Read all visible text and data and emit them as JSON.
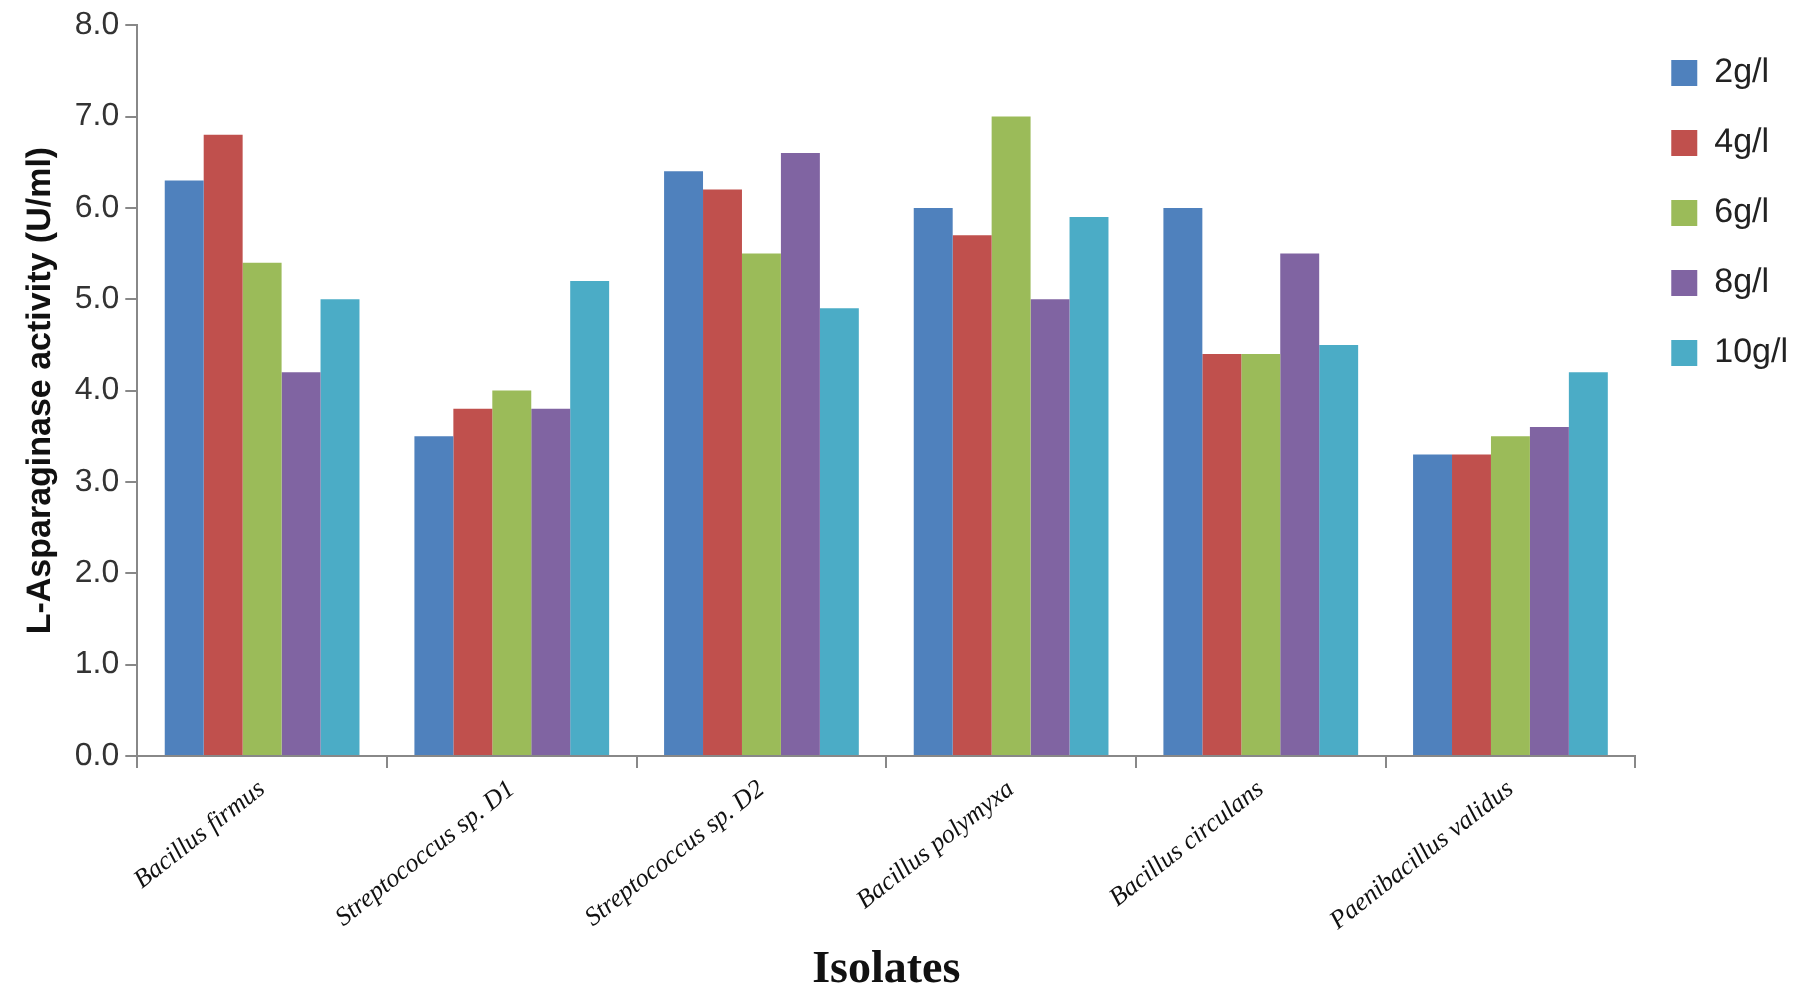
{
  "chart_data": {
    "type": "bar",
    "xlabel": "Isolates",
    "ylabel": "L-Asparaginase activity (U/ml)",
    "categories": [
      "Bacillus firmus",
      "Streptococcus sp. D1",
      "Streptococcus sp. D2",
      "Bacillus polymyxa",
      "Bacillus circulans",
      "Paenibacillus validus"
    ],
    "series": [
      {
        "name": "2g/l",
        "color": "#4f81bd",
        "values": [
          6.3,
          3.5,
          6.4,
          6.0,
          6.0,
          3.3
        ]
      },
      {
        "name": "4g/l",
        "color": "#c0504d",
        "values": [
          6.8,
          3.8,
          6.2,
          5.7,
          4.4,
          3.3
        ]
      },
      {
        "name": "6g/l",
        "color": "#9bbb59",
        "values": [
          5.4,
          4.0,
          5.5,
          7.0,
          4.4,
          3.5
        ]
      },
      {
        "name": "8g/l",
        "color": "#8064a2",
        "values": [
          4.2,
          3.8,
          6.6,
          5.0,
          5.5,
          3.6
        ]
      },
      {
        "name": "10g/l",
        "color": "#4bacc6",
        "values": [
          5.0,
          5.2,
          4.9,
          5.9,
          4.5,
          4.2
        ]
      }
    ],
    "ylim": [
      0,
      8
    ],
    "yticks": [
      {
        "value": 0,
        "label": "0.0"
      },
      {
        "value": 1,
        "label": "1.0"
      },
      {
        "value": 2,
        "label": "2.0"
      },
      {
        "value": 3,
        "label": "3.0"
      },
      {
        "value": 4,
        "label": "4.0"
      },
      {
        "value": 5,
        "label": "5.0"
      },
      {
        "value": 6,
        "label": "6.0"
      },
      {
        "value": 7,
        "label": "7.0"
      },
      {
        "value": 8,
        "label": "8.0"
      }
    ],
    "grid": false,
    "legend": "top right"
  }
}
